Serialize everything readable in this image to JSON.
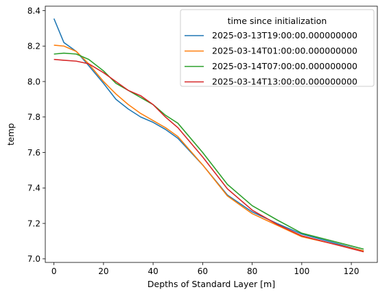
{
  "chart_data": {
    "type": "line",
    "xlabel": "Depths of Standard Layer [m]",
    "ylabel": "temp",
    "xlim": [
      -3.5,
      130.5
    ],
    "ylim": [
      6.98,
      8.425
    ],
    "xticks": [
      0,
      20,
      40,
      60,
      80,
      100,
      120
    ],
    "yticks": [
      7.0,
      7.2,
      7.4,
      7.6,
      7.8,
      8.0,
      8.2,
      8.4
    ],
    "ytick_labels": [
      "7.0",
      "7.2",
      "7.4",
      "7.6",
      "7.8",
      "8.0",
      "8.2",
      "8.4"
    ],
    "grid": false,
    "legend": {
      "title": "time since initialization",
      "placement": "top-right"
    },
    "x": [
      0,
      4,
      9,
      14,
      20,
      25,
      30,
      35,
      40,
      45,
      50,
      60,
      70,
      80,
      90,
      100,
      125
    ],
    "series": [
      {
        "name": "2025-03-13T19:00:00.000000000",
        "color": "#1f77b4",
        "values": [
          8.355,
          8.22,
          8.17,
          8.09,
          7.99,
          7.9,
          7.845,
          7.8,
          7.77,
          7.73,
          7.68,
          7.53,
          7.36,
          7.265,
          7.2,
          7.14,
          7.045
        ]
      },
      {
        "name": "2025-03-14T01:00:00.000000000",
        "color": "#ff7f0e",
        "values": [
          8.205,
          8.2,
          8.17,
          8.1,
          8.0,
          7.93,
          7.87,
          7.82,
          7.78,
          7.74,
          7.69,
          7.53,
          7.355,
          7.255,
          7.19,
          7.125,
          7.045
        ]
      },
      {
        "name": "2025-03-14T07:00:00.000000000",
        "color": "#2ca02c",
        "values": [
          8.155,
          8.16,
          8.155,
          8.125,
          8.06,
          7.99,
          7.95,
          7.91,
          7.87,
          7.81,
          7.765,
          7.6,
          7.42,
          7.3,
          7.22,
          7.145,
          7.055
        ]
      },
      {
        "name": "2025-03-14T13:00:00.000000000",
        "color": "#d62728",
        "values": [
          8.125,
          8.12,
          8.115,
          8.1,
          8.05,
          8.0,
          7.95,
          7.92,
          7.87,
          7.8,
          7.74,
          7.575,
          7.395,
          7.275,
          7.195,
          7.13,
          7.04
        ]
      }
    ]
  }
}
